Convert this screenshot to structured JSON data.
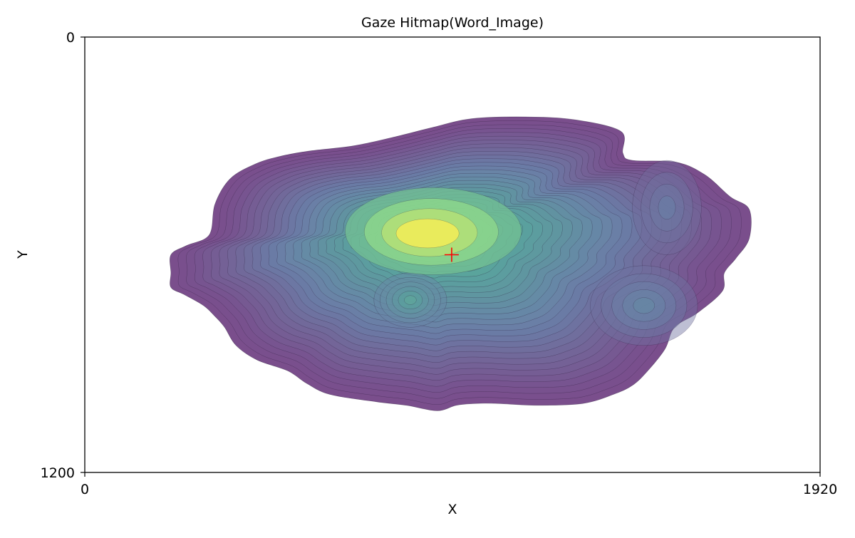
{
  "chart_data": {
    "type": "heatmap",
    "title": "Gaze Hitmap(Word_Image)",
    "xlabel": "X",
    "ylabel": "Y",
    "xlim": [
      0,
      1920
    ],
    "ylim": [
      1200,
      0
    ],
    "y_axis_inverted": true,
    "x_ticks": [
      "0",
      "1920"
    ],
    "y_ticks": [
      "0",
      "1200"
    ],
    "grid": false,
    "legend": "none",
    "colormap": "viridis",
    "marker": {
      "shape": "plus",
      "color": "#ff0000",
      "x": 958,
      "y": 600
    },
    "density_peaks": [
      {
        "x": 910,
        "y": 535,
        "level": "highest"
      },
      {
        "x": 850,
        "y": 725,
        "level": "secondary"
      },
      {
        "x": 1460,
        "y": 740,
        "level": "minor"
      },
      {
        "x": 1520,
        "y": 470,
        "level": "minor"
      }
    ],
    "extent": {
      "x_min": 225,
      "x_max": 1735,
      "y_min": 220,
      "y_max": 1030
    },
    "contour_levels": 32
  },
  "colors": {
    "outer": "#7a4e8c",
    "mid": "#6a82a8",
    "teal": "#58a59c",
    "green": "#8fd98a",
    "peak": "#e9eb5c",
    "line": "#2a1a3a"
  }
}
